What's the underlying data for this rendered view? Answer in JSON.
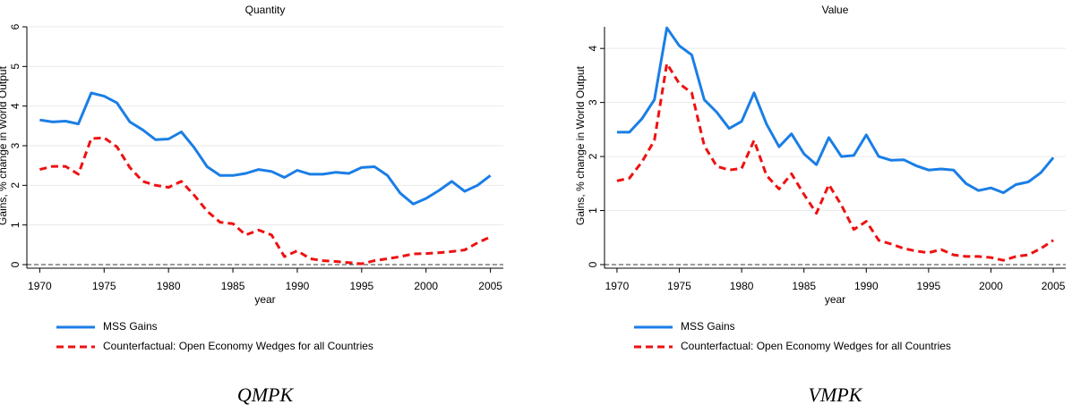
{
  "chart_data": [
    {
      "type": "line",
      "title": "Quantity",
      "x_label": "year",
      "y_label": "Gains, % change in World Output",
      "caption": "QMPK",
      "x": [
        1970,
        1971,
        1972,
        1973,
        1974,
        1975,
        1976,
        1977,
        1978,
        1979,
        1980,
        1981,
        1982,
        1983,
        1984,
        1985,
        1986,
        1987,
        1988,
        1989,
        1990,
        1991,
        1992,
        1993,
        1994,
        1995,
        1996,
        1997,
        1998,
        1999,
        2000,
        2001,
        2002,
        2003,
        2004,
        2005
      ],
      "xlim": [
        1969,
        2006
      ],
      "xticks": [
        1970,
        1975,
        1980,
        1985,
        1990,
        1995,
        2000,
        2005
      ],
      "ylim": [
        0,
        6
      ],
      "yticks": [
        0,
        1,
        2,
        3,
        4,
        5,
        6
      ],
      "grid": true,
      "hline": 0,
      "series": [
        {
          "name": "MSS Gains",
          "color": "#1a7ee6",
          "dash": "solid",
          "values": [
            3.65,
            3.6,
            3.62,
            3.55,
            4.33,
            4.25,
            4.08,
            3.6,
            3.4,
            3.15,
            3.17,
            3.35,
            2.95,
            2.47,
            2.25,
            2.25,
            2.3,
            2.4,
            2.35,
            2.2,
            2.38,
            2.28,
            2.28,
            2.33,
            2.3,
            2.45,
            2.47,
            2.25,
            1.8,
            1.53,
            1.67,
            1.87,
            2.1,
            1.85,
            2.0,
            2.25
          ]
        },
        {
          "name": "Counterfactual: Open Economy Wedges for all Countries",
          "color": "#ee1111",
          "dash": "dashed",
          "values": [
            2.4,
            2.48,
            2.48,
            2.28,
            3.18,
            3.2,
            2.97,
            2.45,
            2.1,
            2.0,
            1.95,
            2.1,
            1.75,
            1.35,
            1.07,
            1.03,
            0.75,
            0.87,
            0.75,
            0.2,
            0.35,
            0.15,
            0.1,
            0.08,
            0.05,
            0.02,
            0.1,
            0.15,
            0.2,
            0.27,
            0.28,
            0.3,
            0.33,
            0.37,
            0.55,
            0.7
          ]
        }
      ]
    },
    {
      "type": "line",
      "title": "Value",
      "x_label": "year",
      "y_label": "Gains, % change in World Output",
      "caption": "VMPK",
      "x": [
        1970,
        1971,
        1972,
        1973,
        1974,
        1975,
        1976,
        1977,
        1978,
        1979,
        1980,
        1981,
        1982,
        1983,
        1984,
        1985,
        1986,
        1987,
        1988,
        1989,
        1990,
        1991,
        1992,
        1993,
        1994,
        1995,
        1996,
        1997,
        1998,
        1999,
        2000,
        2001,
        2002,
        2003,
        2004,
        2005
      ],
      "xlim": [
        1969,
        2006
      ],
      "xticks": [
        1970,
        1975,
        1980,
        1985,
        1990,
        1995,
        2000,
        2005
      ],
      "ylim": [
        0,
        4.4
      ],
      "yticks": [
        0,
        1,
        2,
        3,
        4
      ],
      "grid": true,
      "hline": 0,
      "series": [
        {
          "name": "MSS Gains",
          "color": "#1a7ee6",
          "dash": "solid",
          "values": [
            2.45,
            2.45,
            2.7,
            3.05,
            4.38,
            4.05,
            3.88,
            3.05,
            2.82,
            2.52,
            2.65,
            3.18,
            2.6,
            2.18,
            2.42,
            2.05,
            1.85,
            2.35,
            2.0,
            2.02,
            2.4,
            2.0,
            1.93,
            1.94,
            1.83,
            1.75,
            1.77,
            1.75,
            1.5,
            1.37,
            1.42,
            1.33,
            1.48,
            1.53,
            1.7,
            1.98
          ]
        },
        {
          "name": "Counterfactual: Open Economy Wedges for all Countries",
          "color": "#ee1111",
          "dash": "dashed",
          "values": [
            1.55,
            1.6,
            1.9,
            2.3,
            3.72,
            3.35,
            3.18,
            2.2,
            1.82,
            1.75,
            1.78,
            2.3,
            1.65,
            1.4,
            1.68,
            1.3,
            0.95,
            1.48,
            1.1,
            0.65,
            0.8,
            0.45,
            0.38,
            0.3,
            0.25,
            0.22,
            0.28,
            0.18,
            0.15,
            0.15,
            0.13,
            0.08,
            0.15,
            0.18,
            0.3,
            0.45
          ]
        }
      ]
    }
  ]
}
